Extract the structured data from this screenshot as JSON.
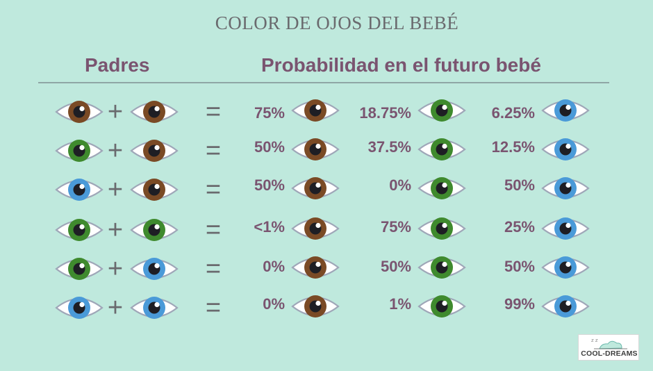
{
  "title": "COLOR DE OJOS DEL BEBÉ",
  "headers": {
    "parents": "Padres",
    "probability": "Probabilidad en el futuro bebé"
  },
  "symbols": {
    "plus": "+",
    "equals": "="
  },
  "eye_colors": {
    "brown": "#7a4a25",
    "green": "#3f8a2e",
    "blue": "#4a9ad8"
  },
  "rows": [
    {
      "parents": [
        "brown",
        "brown"
      ],
      "brown": "75%",
      "green": "18.75%",
      "blue": "6.25%"
    },
    {
      "parents": [
        "green",
        "brown"
      ],
      "brown": "50%",
      "green": "37.5%",
      "blue": "12.5%"
    },
    {
      "parents": [
        "blue",
        "brown"
      ],
      "brown": "50%",
      "green": "0%",
      "blue": "50%"
    },
    {
      "parents": [
        "green",
        "green"
      ],
      "brown": "<1%",
      "green": "75%",
      "blue": "25%"
    },
    {
      "parents": [
        "green",
        "blue"
      ],
      "brown": "0%",
      "green": "50%",
      "blue": "50%"
    },
    {
      "parents": [
        "blue",
        "blue"
      ],
      "brown": "0%",
      "green": "1%",
      "blue": "99%"
    }
  ],
  "logo": {
    "text": "COOL-DREAMS"
  }
}
